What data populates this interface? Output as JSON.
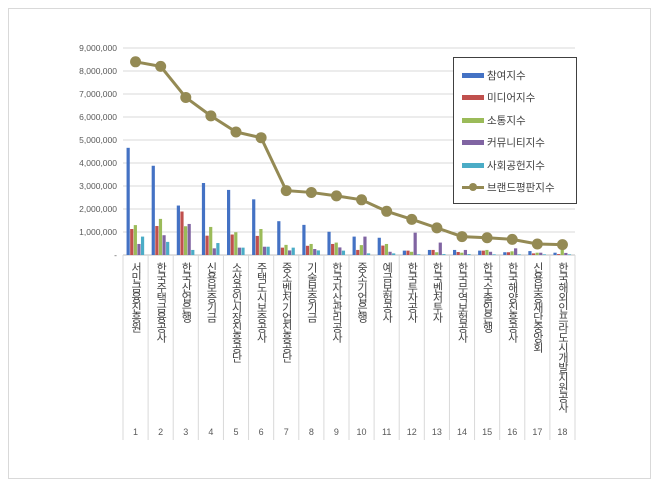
{
  "chart_data": {
    "type": "bar",
    "categories": [
      "서민금융진흥원",
      "한국주택금융공사",
      "한국산업은행",
      "신용보증기금",
      "소상공인시장진흥공단",
      "주택도시보증공사",
      "중소벤처기업진흥공단",
      "기술보증기금",
      "한국자산관리공사",
      "중소기업은행",
      "예금보험공사",
      "한국투자공사",
      "한국벤처투자",
      "한국무역보험공사",
      "한국수출입은행",
      "한국해양진흥공사",
      "신용보증재단중앙회",
      "한국해외인프라도시개발지원공사"
    ],
    "rank_labels": [
      "1",
      "2",
      "3",
      "4",
      "5",
      "6",
      "7",
      "8",
      "9",
      "10",
      "11",
      "12",
      "13",
      "14",
      "15",
      "16",
      "17",
      "18"
    ],
    "ylim": [
      0,
      9000000
    ],
    "yticks": [
      "-",
      "1,000,000",
      "2,000,000",
      "3,000,000",
      "4,000,000",
      "5,000,000",
      "6,000,000",
      "7,000,000",
      "8,000,000",
      "9,000,000"
    ],
    "grid": true,
    "legend_position": "right",
    "series": [
      {
        "name": "참여지수",
        "type": "bar",
        "color": "#4472c4",
        "values": [
          4660000,
          3880000,
          2150000,
          3130000,
          2830000,
          2420000,
          1470000,
          1310000,
          1010000,
          800000,
          750000,
          190000,
          220000,
          220000,
          190000,
          120000,
          170000,
          100000
        ]
      },
      {
        "name": "미디어지수",
        "type": "bar",
        "color": "#c0504d",
        "values": [
          1130000,
          1260000,
          1890000,
          840000,
          890000,
          830000,
          320000,
          400000,
          480000,
          220000,
          410000,
          190000,
          220000,
          130000,
          190000,
          120000,
          70000,
          40000
        ]
      },
      {
        "name": "소통지수",
        "type": "bar",
        "color": "#9bbb59",
        "values": [
          1300000,
          1570000,
          1250000,
          1220000,
          990000,
          1130000,
          440000,
          480000,
          540000,
          430000,
          480000,
          140000,
          120000,
          100000,
          220000,
          160000,
          100000,
          220000
        ]
      },
      {
        "name": "커뮤니티지수",
        "type": "bar",
        "color": "#8064a2",
        "values": [
          480000,
          860000,
          1350000,
          290000,
          320000,
          360000,
          200000,
          260000,
          330000,
          800000,
          140000,
          970000,
          540000,
          220000,
          140000,
          290000,
          100000,
          90000
        ]
      },
      {
        "name": "사회공헌지수",
        "type": "bar",
        "color": "#4bacc6",
        "values": [
          800000,
          570000,
          220000,
          520000,
          320000,
          360000,
          320000,
          200000,
          190000,
          70000,
          70000,
          30000,
          40000,
          40000,
          30000,
          30000,
          30000,
          30000
        ]
      },
      {
        "name": "브랜드평판지수",
        "type": "line",
        "color": "#948a54",
        "values": [
          8400000,
          8200000,
          6850000,
          6050000,
          5350000,
          5100000,
          2800000,
          2720000,
          2570000,
          2400000,
          1900000,
          1550000,
          1180000,
          800000,
          750000,
          680000,
          480000,
          450000
        ]
      }
    ]
  }
}
